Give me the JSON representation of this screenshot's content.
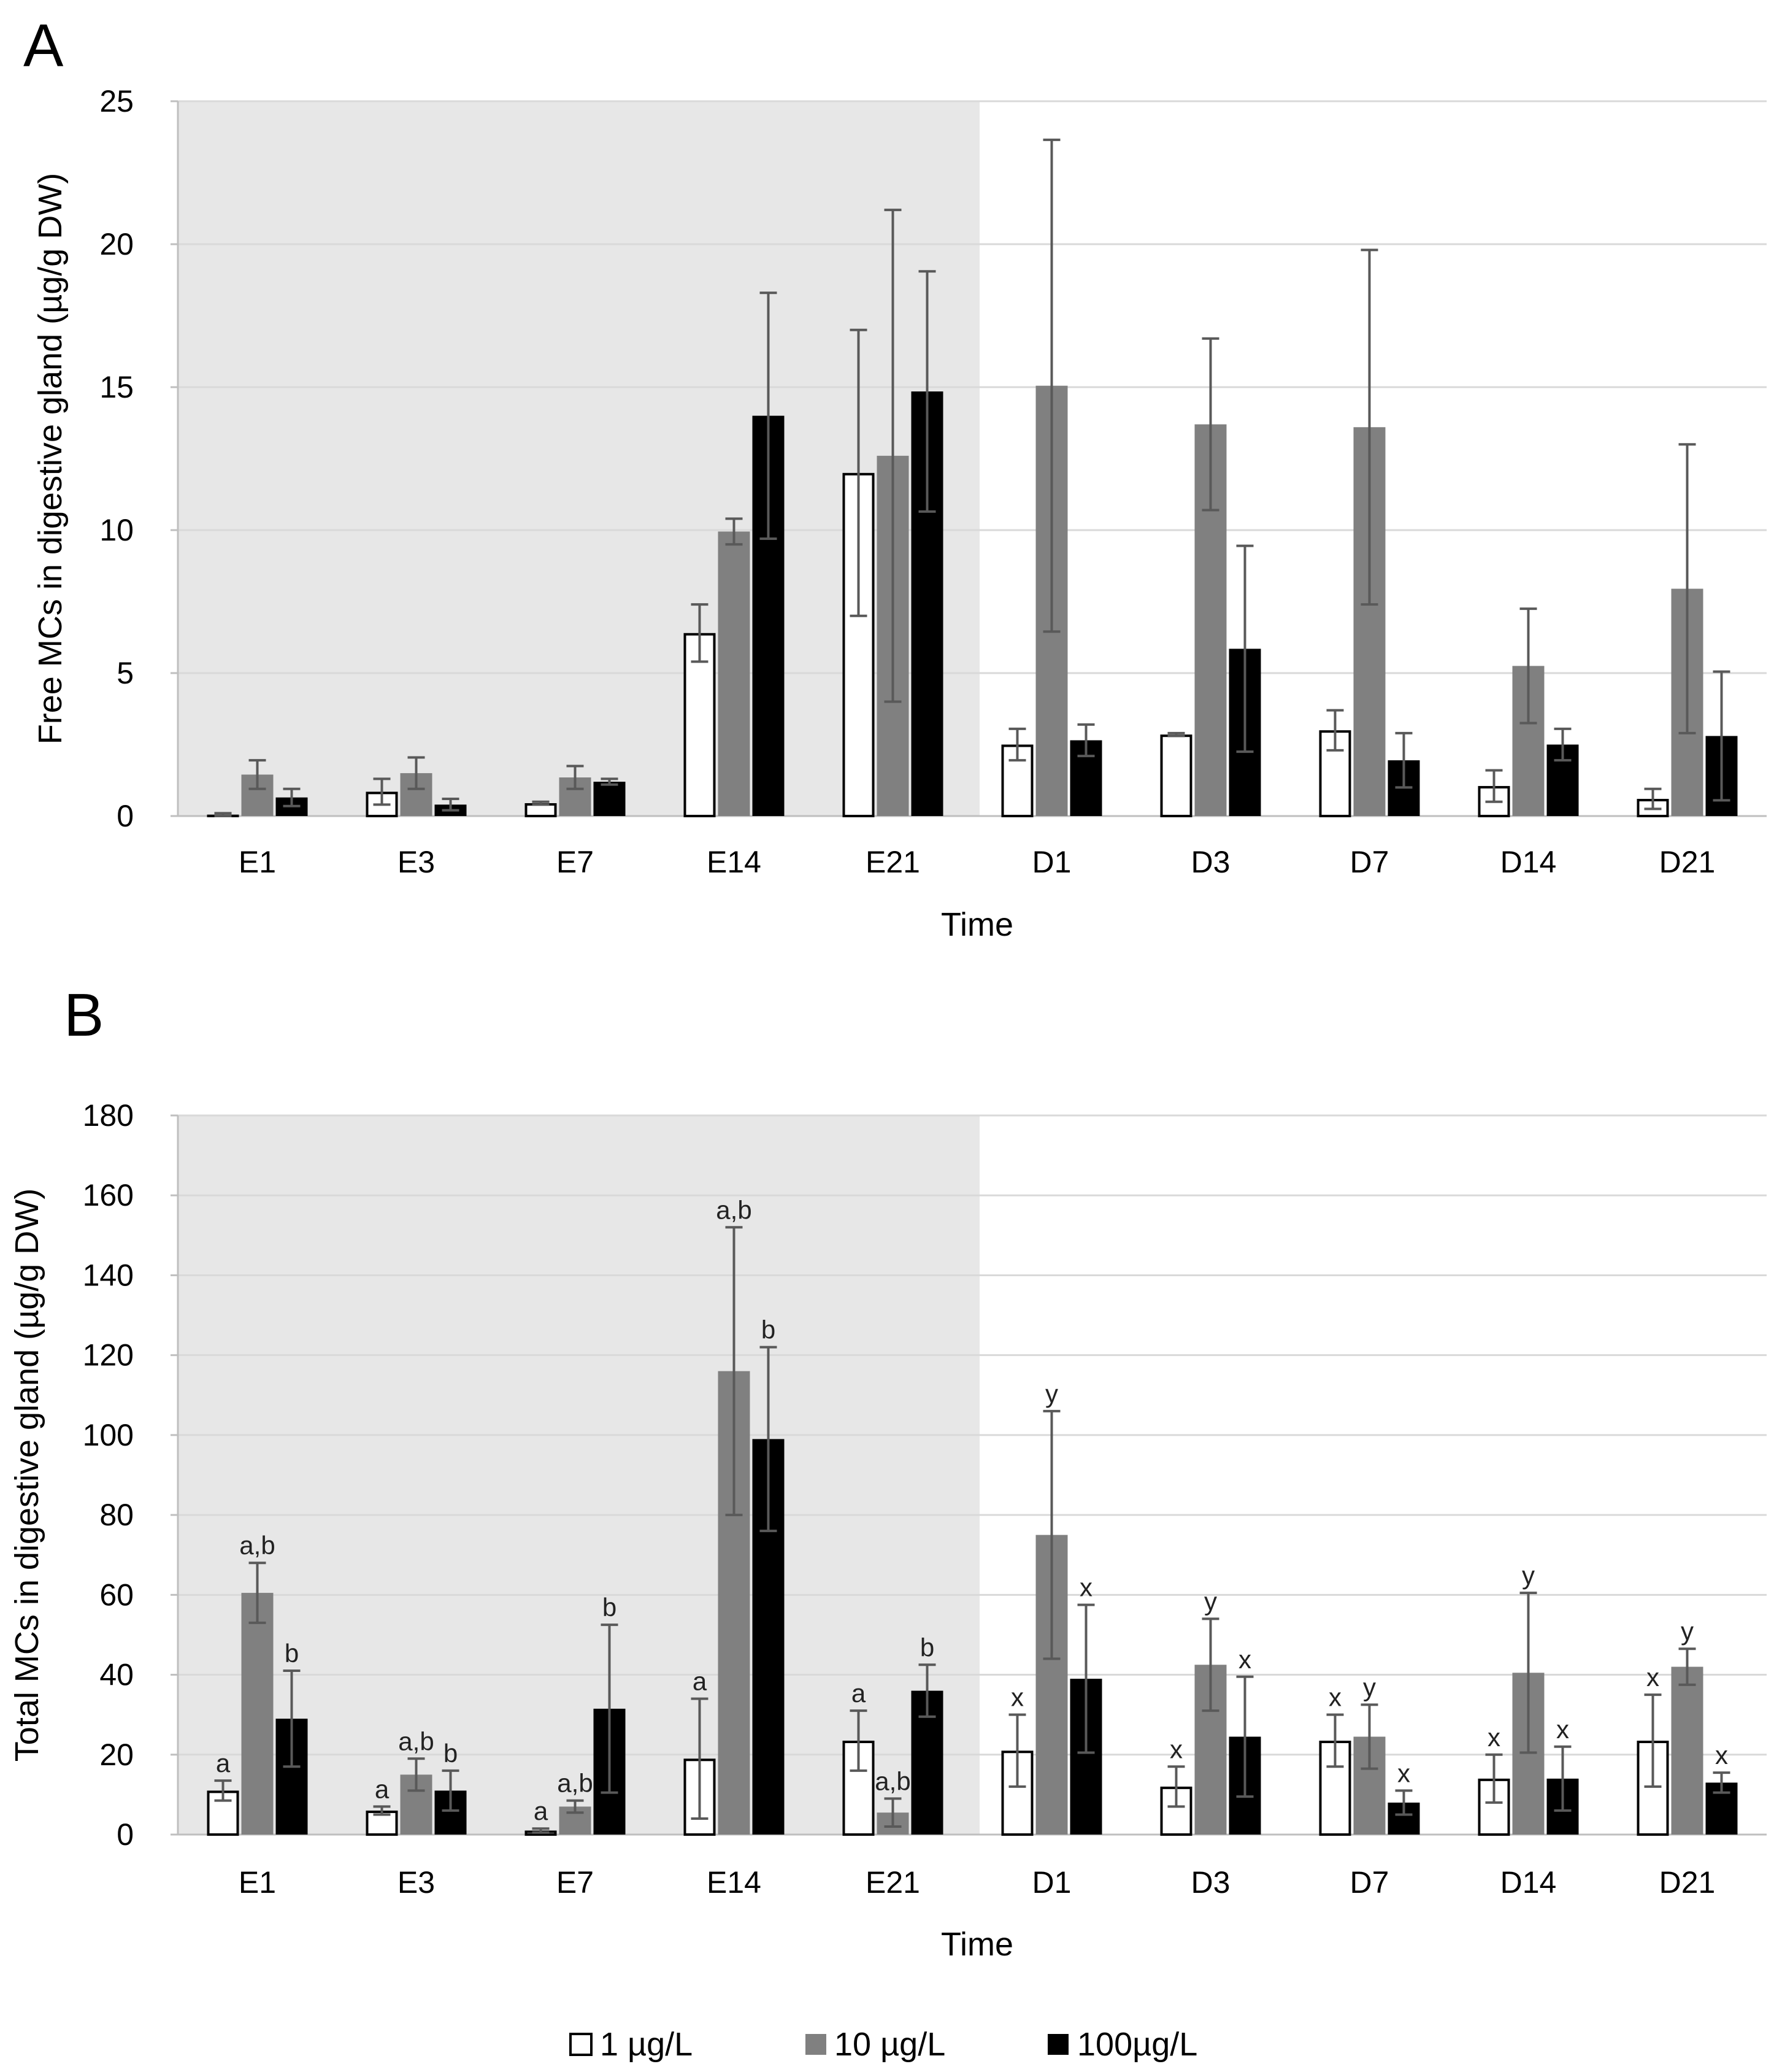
{
  "colors": {
    "shade": "#e7e7e7",
    "grid": "#d9d9d9",
    "axis": "#bfbfbf",
    "series_fill": [
      "#ffffff",
      "#808080",
      "#000000"
    ],
    "series_stroke": [
      "#000000",
      "#808080",
      "#000000"
    ],
    "errorbar": [
      "#595959",
      "#595959",
      "#595959"
    ]
  },
  "legend": {
    "items": [
      {
        "label": "1 µg/L"
      },
      {
        "label": "10 µg/L"
      },
      {
        "label": "100µg/L"
      }
    ]
  },
  "chart_data": [
    {
      "type": "bar",
      "panel": "A",
      "title": "",
      "xlabel": "Time",
      "ylabel": "Free MCs in digestive gland  (µg/g  DW)",
      "ylim": [
        0,
        25
      ],
      "yticks": [
        0,
        5,
        10,
        15,
        20,
        25
      ],
      "grid": true,
      "shaded_categories": [
        "E1",
        "E3",
        "E7",
        "E14",
        "E21"
      ],
      "categories": [
        "E1",
        "E3",
        "E7",
        "E14",
        "E21",
        "D1",
        "D3",
        "D7",
        "D14",
        "D21"
      ],
      "series": [
        {
          "name": "1 µg/L",
          "values": [
            0.05,
            0.85,
            0.45,
            6.4,
            12.0,
            2.5,
            2.85,
            3.0,
            1.05,
            0.6
          ],
          "errors": [
            0.05,
            0.45,
            0.05,
            1.0,
            5.0,
            0.55,
            0.05,
            0.7,
            0.55,
            0.35
          ],
          "labels": [
            "",
            "",
            "",
            "",
            "",
            "",
            "",
            "",
            "",
            ""
          ]
        },
        {
          "name": "10 µg/L",
          "values": [
            1.45,
            1.5,
            1.35,
            9.95,
            12.6,
            15.05,
            13.7,
            13.6,
            5.25,
            7.95
          ],
          "errors": [
            0.5,
            0.55,
            0.4,
            0.45,
            8.6,
            8.6,
            3.0,
            6.2,
            2.0,
            5.05
          ],
          "labels": [
            "",
            "",
            "",
            "",
            "",
            "",
            "",
            "",
            "",
            ""
          ]
        },
        {
          "name": "100µg/L",
          "values": [
            0.65,
            0.4,
            1.2,
            14.0,
            14.85,
            2.65,
            5.85,
            1.95,
            2.5,
            2.8
          ],
          "errors": [
            0.3,
            0.2,
            0.1,
            4.3,
            4.2,
            0.55,
            3.6,
            0.95,
            0.55,
            2.25
          ],
          "labels": [
            "",
            "",
            "",
            "",
            "",
            "",
            "",
            "",
            "",
            ""
          ]
        }
      ]
    },
    {
      "type": "bar",
      "panel": "B",
      "title": "",
      "xlabel": "Time",
      "ylabel": "Total MCs in digestive gland  (µg/g  DW)",
      "ylim": [
        0,
        180
      ],
      "yticks": [
        0,
        20,
        40,
        60,
        80,
        100,
        120,
        140,
        160,
        180
      ],
      "grid": true,
      "shaded_categories": [
        "E1",
        "E3",
        "E7",
        "E14",
        "E21"
      ],
      "categories": [
        "E1",
        "E3",
        "E7",
        "E14",
        "E21",
        "D1",
        "D3",
        "D7",
        "D14",
        "D21"
      ],
      "series": [
        {
          "name": "1 µg/L",
          "values": [
            11,
            6,
            1,
            19,
            23.5,
            21,
            12,
            23.5,
            14,
            23.5
          ],
          "errors": [
            2.5,
            1,
            0.5,
            15,
            7.5,
            9,
            5,
            6.5,
            6,
            11.5
          ],
          "labels": [
            "a",
            "a",
            "a",
            "a",
            "a",
            "x",
            "x",
            "x",
            "x",
            "x"
          ]
        },
        {
          "name": "10 µg/L",
          "values": [
            60.5,
            15,
            7,
            116,
            5.5,
            75,
            42.5,
            24.5,
            40.5,
            42
          ],
          "errors": [
            7.5,
            4,
            1.5,
            36,
            3.5,
            31,
            11.5,
            8,
            20,
            4.5
          ],
          "labels": [
            "a,b",
            "a,b",
            "a,b",
            "a,b",
            "a,b",
            "y",
            "y",
            "y",
            "y",
            "y"
          ]
        },
        {
          "name": "100µg/L",
          "values": [
            29,
            11,
            31.5,
            99,
            36,
            39,
            24.5,
            8,
            14,
            13
          ],
          "errors": [
            12,
            5,
            21,
            23,
            6.5,
            18.5,
            15,
            3,
            8,
            2.5
          ],
          "labels": [
            "b",
            "b",
            "b",
            "b",
            "b",
            "x",
            "x",
            "x",
            "x",
            "x"
          ]
        }
      ]
    }
  ]
}
